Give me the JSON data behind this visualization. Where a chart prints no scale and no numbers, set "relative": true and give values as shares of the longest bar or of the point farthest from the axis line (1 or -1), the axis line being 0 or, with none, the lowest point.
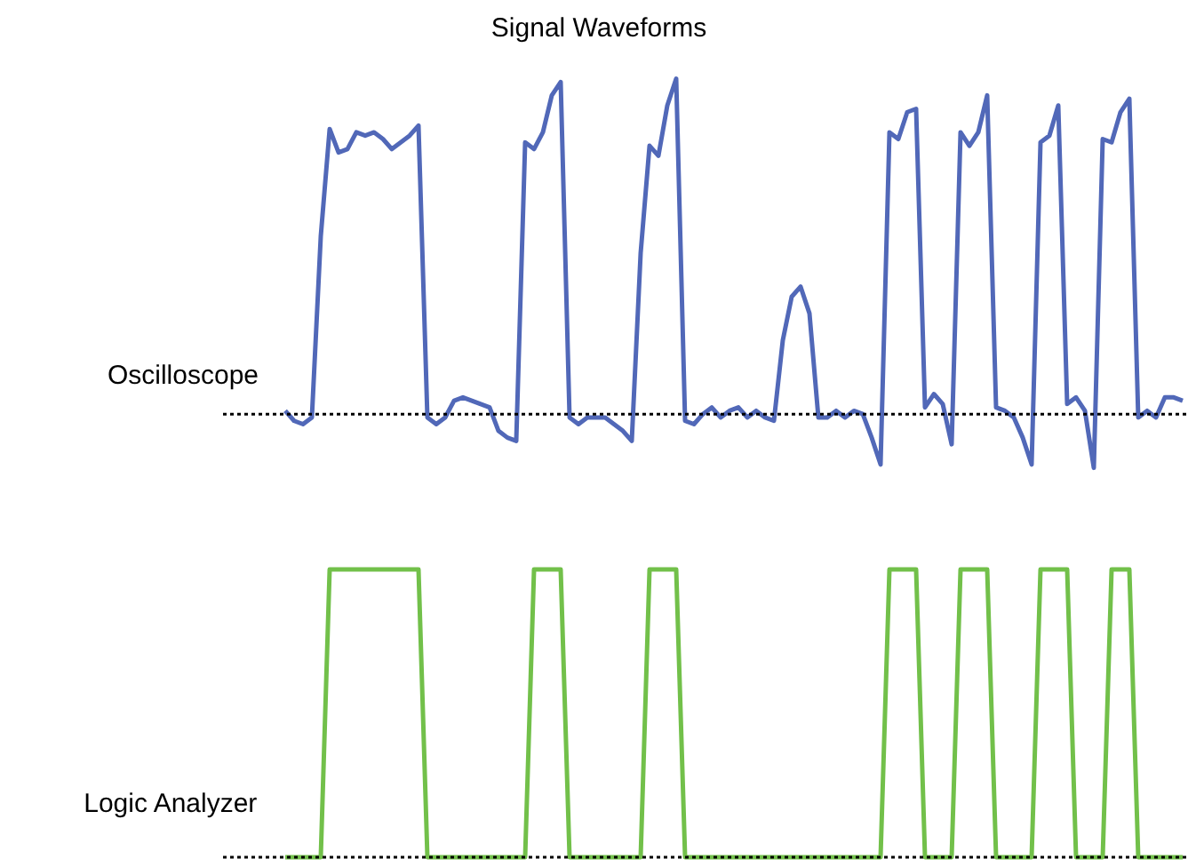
{
  "chart_data": [
    {
      "type": "line",
      "title": "Signal Waveforms",
      "relative": true,
      "categories": [
        null,
        null,
        null,
        null,
        null,
        null,
        null,
        null,
        null,
        null,
        null,
        null,
        null,
        null,
        null,
        null,
        null,
        null,
        null,
        null,
        null,
        null,
        null,
        null,
        null,
        null,
        null,
        null,
        null,
        null,
        null,
        null,
        null,
        null,
        null,
        null,
        null,
        null,
        null,
        null,
        null,
        null,
        null,
        null,
        null,
        null,
        null,
        null,
        null,
        null,
        null,
        null,
        null,
        null,
        null,
        null,
        null,
        null,
        null,
        null,
        null,
        null,
        null,
        null,
        null,
        null,
        null,
        null,
        null,
        null,
        null,
        null,
        null,
        null,
        null,
        null,
        null,
        null,
        null,
        null,
        null,
        null,
        null,
        null,
        null,
        null,
        null,
        null,
        null,
        null,
        null,
        null,
        null,
        null,
        null,
        null,
        null,
        null,
        null,
        null,
        null,
        null
      ],
      "series": [
        {
          "name": "Oscilloscope",
          "color": "#5168b8",
          "values": [
            0.01,
            -0.02,
            -0.03,
            -0.01,
            0.53,
            0.85,
            0.78,
            0.79,
            0.84,
            0.83,
            0.84,
            0.82,
            0.79,
            0.81,
            0.83,
            0.86,
            -0.01,
            -0.03,
            -0.01,
            0.04,
            0.05,
            0.04,
            0.03,
            0.02,
            -0.05,
            -0.07,
            -0.08,
            0.81,
            0.79,
            0.84,
            0.95,
            0.99,
            -0.01,
            -0.03,
            -0.01,
            -0.01,
            -0.01,
            -0.03,
            -0.05,
            -0.08,
            0.48,
            0.8,
            0.77,
            0.92,
            1.0,
            -0.02,
            -0.03,
            0,
            0.02,
            -0.01,
            0.01,
            0.02,
            -0.01,
            0.01,
            -0.01,
            -0.02,
            0.22,
            0.35,
            0.38,
            0.3,
            -0.01,
            -0.01,
            0.01,
            -0.01,
            0.01,
            0,
            -0.07,
            -0.15,
            0.84,
            0.82,
            0.9,
            0.91,
            0.02,
            0.06,
            0.03,
            -0.09,
            0.84,
            0.8,
            0.84,
            0.95,
            0.02,
            0.01,
            -0.01,
            -0.07,
            -0.15,
            0.81,
            0.83,
            0.92,
            0.03,
            0.05,
            0.01,
            -0.16,
            0.82,
            0.81,
            0.9,
            0.94,
            -0.01,
            0.01,
            -0.01,
            0.05,
            0.05,
            0.04
          ]
        }
      ],
      "ref_lines": [
        {
          "axis": "y",
          "value": 0,
          "color": "#000000",
          "line_style": "dotted"
        }
      ]
    },
    {
      "type": "line",
      "relative": true,
      "categories": [
        null,
        null,
        null,
        null,
        null,
        null,
        null,
        null,
        null,
        null,
        null,
        null,
        null,
        null,
        null,
        null,
        null,
        null,
        null,
        null,
        null,
        null,
        null,
        null,
        null,
        null,
        null,
        null,
        null,
        null,
        null,
        null,
        null,
        null,
        null,
        null,
        null,
        null,
        null,
        null,
        null,
        null,
        null,
        null,
        null,
        null,
        null,
        null,
        null,
        null,
        null,
        null,
        null,
        null,
        null,
        null,
        null,
        null,
        null,
        null,
        null,
        null,
        null,
        null,
        null,
        null,
        null,
        null,
        null,
        null,
        null,
        null,
        null,
        null,
        null,
        null,
        null,
        null,
        null,
        null,
        null,
        null,
        null,
        null,
        null,
        null,
        null,
        null,
        null,
        null,
        null,
        null,
        null,
        null,
        null,
        null,
        null,
        null,
        null,
        null,
        null,
        null
      ],
      "series": [
        {
          "name": "Logic Analyzer",
          "color": "#72c04a",
          "values": [
            0,
            0,
            0,
            0,
            0,
            1,
            1,
            1,
            1,
            1,
            1,
            1,
            1,
            1,
            1,
            1,
            0,
            0,
            0,
            0,
            0,
            0,
            0,
            0,
            0,
            0,
            0,
            0,
            1,
            1,
            1,
            1,
            0,
            0,
            0,
            0,
            0,
            0,
            0,
            0,
            0,
            1,
            1,
            1,
            1,
            0,
            0,
            0,
            0,
            0,
            0,
            0,
            0,
            0,
            0,
            0,
            0,
            0,
            0,
            0,
            0,
            0,
            0,
            0,
            0,
            0,
            0,
            0,
            1,
            1,
            1,
            1,
            0,
            0,
            0,
            0,
            1,
            1,
            1,
            1,
            0,
            0,
            0,
            0,
            0,
            1,
            1,
            1,
            1,
            0,
            0,
            0,
            0,
            1,
            1,
            1,
            0,
            0,
            0,
            0,
            0,
            0
          ]
        }
      ],
      "ref_lines": [
        {
          "axis": "y",
          "value": 0,
          "color": "#000000",
          "line_style": "dotted"
        }
      ]
    }
  ]
}
